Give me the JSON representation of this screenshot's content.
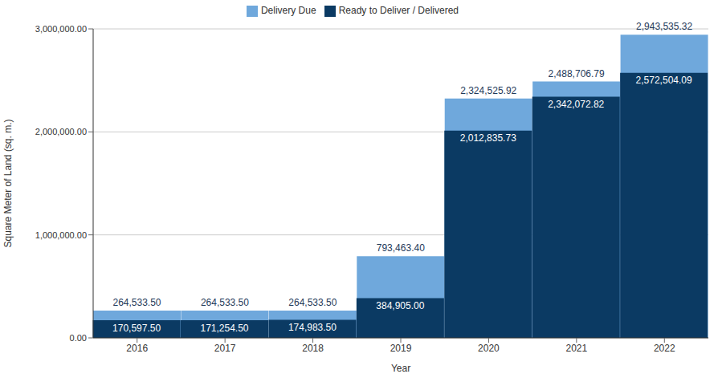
{
  "chart_data": {
    "type": "bar",
    "categories": [
      "2016",
      "2017",
      "2018",
      "2019",
      "2020",
      "2021",
      "2022"
    ],
    "series": [
      {
        "name": "Delivery Due",
        "color": "#6fa8dc",
        "values": [
          264533.5,
          264533.5,
          264533.5,
          793463.4,
          2324525.92,
          2488706.79,
          2943535.32
        ],
        "value_labels": [
          "264,533.50",
          "264,533.50",
          "264,533.50",
          "793,463.40",
          "2,324,525.92",
          "2,488,706.79",
          "2,943,535.32"
        ]
      },
      {
        "name": "Ready to Deliver / Delivered",
        "color": "#0b3a63",
        "values": [
          170597.5,
          171254.5,
          174983.5,
          384905,
          2012835.73,
          2342072.82,
          2572504.09
        ],
        "value_labels": [
          "170,597.50",
          "171,254.50",
          "174,983.50",
          "384,905.00",
          "2,012,835.73",
          "2,342,072.82",
          "2,572,504.09"
        ]
      }
    ],
    "x_label": "Year",
    "y_label": "Square Meter of Land (sq. m.)",
    "ylim": [
      0,
      3000000
    ],
    "yticks": [
      {
        "value": 0,
        "label": "0.00"
      },
      {
        "value": 1000000,
        "label": "1,000,000.00"
      },
      {
        "value": 2000000,
        "label": "2,000,000.00"
      },
      {
        "value": 3000000,
        "label": "3,000,000.00"
      }
    ],
    "grid": true,
    "legend": "top",
    "stacked": false,
    "data_labels": true
  }
}
